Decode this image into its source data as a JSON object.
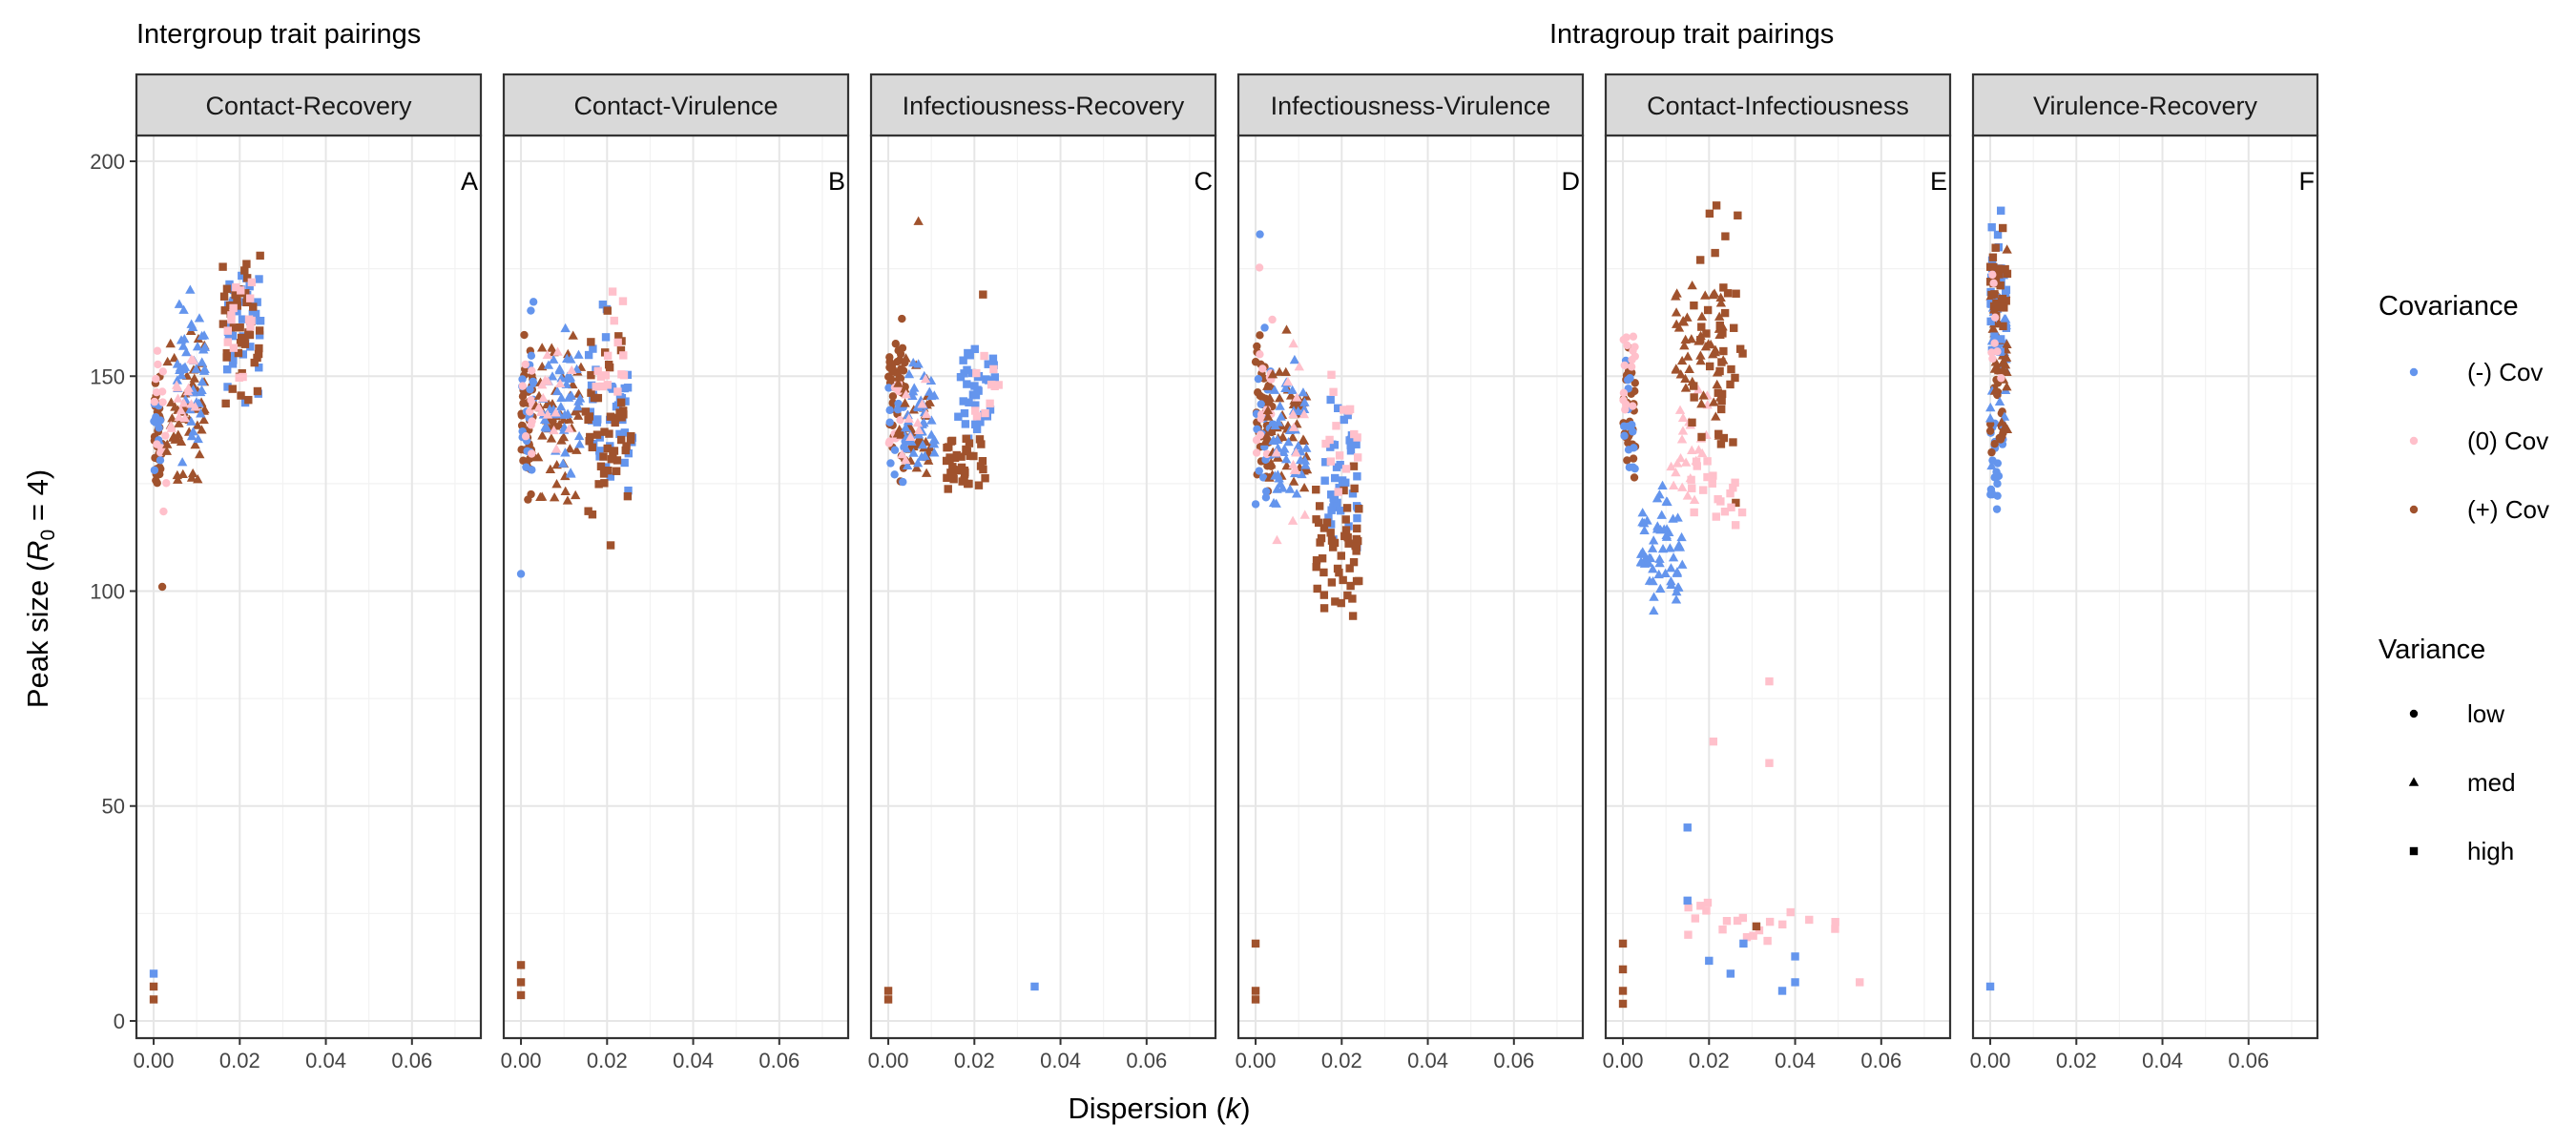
{
  "chart_data": {
    "type": "scatter",
    "group_titles": [
      "Intergroup trait pairings",
      "Intragroup trait pairings"
    ],
    "xlabel": "Dispersion (k)",
    "ylabel": "Peak size (R₀ = 4)",
    "xlim": [
      -0.004,
      0.076
    ],
    "ylim": [
      -4,
      206
    ],
    "x_ticks": [
      0.0,
      0.02,
      0.04,
      0.06
    ],
    "x_tick_labels": [
      "0.00",
      "0.02",
      "0.04",
      "0.06"
    ],
    "y_ticks": [
      0,
      50,
      100,
      150,
      200
    ],
    "y_tick_labels": [
      "0",
      "50",
      "100",
      "150",
      "200"
    ],
    "grid": true,
    "legend": {
      "placement": "right",
      "covariance": {
        "title": "Covariance",
        "items": [
          {
            "label": "(-) Cov",
            "color": "#6495ED"
          },
          {
            "label": "(0) Cov",
            "color": "#FFC0CB"
          },
          {
            "label": "(+) Cov",
            "color": "#A0522D"
          }
        ]
      },
      "variance": {
        "title": "Variance",
        "items": [
          {
            "label": "low",
            "shape": "circle"
          },
          {
            "label": "med",
            "shape": "triangle"
          },
          {
            "label": "high",
            "shape": "square"
          }
        ]
      }
    },
    "panels": [
      {
        "title": "Contact-Recovery",
        "tag": "A",
        "clusters": [
          {
            "cov": "(+) Cov",
            "var": "low",
            "x": [
              0.0,
              0.002
            ],
            "y": [
              115,
              155
            ],
            "n": 40
          },
          {
            "cov": "(-) Cov",
            "var": "low",
            "x": [
              0.0,
              0.002
            ],
            "y": [
              125,
              150
            ],
            "n": 14
          },
          {
            "cov": "(0) Cov",
            "var": "low",
            "x": [
              0.0,
              0.003
            ],
            "y": [
              110,
              165
            ],
            "n": 14
          },
          {
            "cov": "(+) Cov",
            "var": "med",
            "x": [
              0.003,
              0.012
            ],
            "y": [
              118,
              168
            ],
            "n": 55
          },
          {
            "cov": "(-) Cov",
            "var": "med",
            "x": [
              0.005,
              0.012
            ],
            "y": [
              125,
              175
            ],
            "n": 45
          },
          {
            "cov": "(0) Cov",
            "var": "med",
            "x": [
              0.004,
              0.01
            ],
            "y": [
              125,
              165
            ],
            "n": 15
          },
          {
            "cov": "(-) Cov",
            "var": "high",
            "x": [
              0.017,
              0.025
            ],
            "y": [
              140,
              188
            ],
            "n": 40
          },
          {
            "cov": "(+) Cov",
            "var": "high",
            "x": [
              0.016,
              0.025
            ],
            "y": [
              133,
              188
            ],
            "n": 45
          },
          {
            "cov": "(0) Cov",
            "var": "high",
            "x": [
              0.016,
              0.023
            ],
            "y": [
              140,
              182
            ],
            "n": 15
          }
        ],
        "points": [
          {
            "cov": "(+) Cov",
            "var": "low",
            "x": 0.002,
            "y": 101
          },
          {
            "cov": "(-) Cov",
            "var": "high",
            "x": 0.0,
            "y": 11
          },
          {
            "cov": "(+) Cov",
            "var": "high",
            "x": 0.0,
            "y": 8
          },
          {
            "cov": "(+) Cov",
            "var": "high",
            "x": 0.0,
            "y": 5
          }
        ]
      },
      {
        "title": "Contact-Virulence",
        "tag": "B",
        "clusters": [
          {
            "cov": "(+) Cov",
            "var": "low",
            "x": [
              0.0,
              0.003
            ],
            "y": [
              118,
              165
            ],
            "n": 40
          },
          {
            "cov": "(-) Cov",
            "var": "low",
            "x": [
              0.0,
              0.003
            ],
            "y": [
              110,
              180
            ],
            "n": 20
          },
          {
            "cov": "(0) Cov",
            "var": "low",
            "x": [
              0.0,
              0.003
            ],
            "y": [
              120,
              160
            ],
            "n": 10
          },
          {
            "cov": "(+) Cov",
            "var": "med",
            "x": [
              0.003,
              0.014
            ],
            "y": [
              115,
              165
            ],
            "n": 55
          },
          {
            "cov": "(-) Cov",
            "var": "med",
            "x": [
              0.005,
              0.014
            ],
            "y": [
              120,
              170
            ],
            "n": 45
          },
          {
            "cov": "(0) Cov",
            "var": "med",
            "x": [
              0.004,
              0.012
            ],
            "y": [
              120,
              160
            ],
            "n": 15
          },
          {
            "cov": "(-) Cov",
            "var": "high",
            "x": [
              0.015,
              0.026
            ],
            "y": [
              115,
              175
            ],
            "n": 40
          },
          {
            "cov": "(+) Cov",
            "var": "high",
            "x": [
              0.015,
              0.026
            ],
            "y": [
              101,
              170
            ],
            "n": 50
          },
          {
            "cov": "(0) Cov",
            "var": "high",
            "x": [
              0.017,
              0.024
            ],
            "y": [
              135,
              178
            ],
            "n": 15
          }
        ],
        "points": [
          {
            "cov": "(-) Cov",
            "var": "low",
            "x": 0.0,
            "y": 104
          },
          {
            "cov": "(+) Cov",
            "var": "high",
            "x": 0.0,
            "y": 13
          },
          {
            "cov": "(+) Cov",
            "var": "high",
            "x": 0.0,
            "y": 9
          },
          {
            "cov": "(+) Cov",
            "var": "high",
            "x": 0.0,
            "y": 6
          }
        ]
      },
      {
        "title": "Infectiousness-Recovery",
        "tag": "C",
        "clusters": [
          {
            "cov": "(+) Cov",
            "var": "low",
            "x": [
              0.0,
              0.004
            ],
            "y": [
              115,
              170
            ],
            "n": 40
          },
          {
            "cov": "(-) Cov",
            "var": "low",
            "x": [
              0.0,
              0.004
            ],
            "y": [
              115,
              160
            ],
            "n": 15
          },
          {
            "cov": "(0) Cov",
            "var": "low",
            "x": [
              0.0,
              0.003
            ],
            "y": [
              120,
              160
            ],
            "n": 10
          },
          {
            "cov": "(+) Cov",
            "var": "med",
            "x": [
              0.002,
              0.01
            ],
            "y": [
              115,
              160
            ],
            "n": 40
          },
          {
            "cov": "(-) Cov",
            "var": "med",
            "x": [
              0.004,
              0.011
            ],
            "y": [
              118,
              160
            ],
            "n": 40
          },
          {
            "cov": "(0) Cov",
            "var": "med",
            "x": [
              0.003,
              0.009
            ],
            "y": [
              120,
              155
            ],
            "n": 10
          },
          {
            "cov": "(-) Cov",
            "var": "high",
            "x": [
              0.016,
              0.025
            ],
            "y": [
              128,
              165
            ],
            "n": 35
          },
          {
            "cov": "(+) Cov",
            "var": "high",
            "x": [
              0.013,
              0.023
            ],
            "y": [
              120,
              140
            ],
            "n": 40
          },
          {
            "cov": "(0) Cov",
            "var": "high",
            "x": [
              0.02,
              0.026
            ],
            "y": [
              130,
              160
            ],
            "n": 10
          }
        ],
        "points": [
          {
            "cov": "(+) Cov",
            "var": "med",
            "x": 0.007,
            "y": 186
          },
          {
            "cov": "(+) Cov",
            "var": "high",
            "x": 0.022,
            "y": 169
          },
          {
            "cov": "(-) Cov",
            "var": "high",
            "x": 0.034,
            "y": 8
          },
          {
            "cov": "(+) Cov",
            "var": "high",
            "x": 0.0,
            "y": 7
          },
          {
            "cov": "(+) Cov",
            "var": "high",
            "x": 0.0,
            "y": 5
          }
        ]
      },
      {
        "title": "Infectiousness-Virulence",
        "tag": "D",
        "clusters": [
          {
            "cov": "(+) Cov",
            "var": "low",
            "x": [
              0.0,
              0.004
            ],
            "y": [
              115,
              167
            ],
            "n": 40
          },
          {
            "cov": "(-) Cov",
            "var": "low",
            "x": [
              0.0,
              0.004
            ],
            "y": [
              108,
              165
            ],
            "n": 20
          },
          {
            "cov": "(0) Cov",
            "var": "low",
            "x": [
              0.0,
              0.004
            ],
            "y": [
              110,
              185
            ],
            "n": 15
          },
          {
            "cov": "(+) Cov",
            "var": "med",
            "x": [
              0.002,
              0.012
            ],
            "y": [
              110,
              165
            ],
            "n": 50
          },
          {
            "cov": "(-) Cov",
            "var": "med",
            "x": [
              0.004,
              0.012
            ],
            "y": [
              112,
              160
            ],
            "n": 45
          },
          {
            "cov": "(0) Cov",
            "var": "med",
            "x": [
              0.004,
              0.012
            ],
            "y": [
              103,
              165
            ],
            "n": 15
          },
          {
            "cov": "(-) Cov",
            "var": "high",
            "x": [
              0.016,
              0.025
            ],
            "y": [
              100,
              152
            ],
            "n": 40
          },
          {
            "cov": "(+) Cov",
            "var": "high",
            "x": [
              0.014,
              0.024
            ],
            "y": [
              84,
              140
            ],
            "n": 50
          },
          {
            "cov": "(0) Cov",
            "var": "high",
            "x": [
              0.016,
              0.024
            ],
            "y": [
              110,
              166
            ],
            "n": 15
          }
        ],
        "points": [
          {
            "cov": "(-) Cov",
            "var": "low",
            "x": 0.001,
            "y": 183
          },
          {
            "cov": "(+) Cov",
            "var": "high",
            "x": 0.0,
            "y": 18
          },
          {
            "cov": "(+) Cov",
            "var": "high",
            "x": 0.0,
            "y": 7
          },
          {
            "cov": "(+) Cov",
            "var": "high",
            "x": 0.0,
            "y": 5
          }
        ]
      },
      {
        "title": "Contact-Infectiousness",
        "tag": "E",
        "clusters": [
          {
            "cov": "(+) Cov",
            "var": "low",
            "x": [
              0.0,
              0.003
            ],
            "y": [
              120,
              165
            ],
            "n": 30
          },
          {
            "cov": "(-) Cov",
            "var": "low",
            "x": [
              0.0,
              0.003
            ],
            "y": [
              115,
              160
            ],
            "n": 15
          },
          {
            "cov": "(0) Cov",
            "var": "low",
            "x": [
              0.0,
              0.003
            ],
            "y": [
              125,
              175
            ],
            "n": 15
          },
          {
            "cov": "(-) Cov",
            "var": "med",
            "x": [
              0.004,
              0.014
            ],
            "y": [
              88,
              130
            ],
            "n": 60
          },
          {
            "cov": "(0) Cov",
            "var": "med",
            "x": [
              0.01,
              0.02
            ],
            "y": [
              110,
              160
            ],
            "n": 25
          },
          {
            "cov": "(+) Cov",
            "var": "med",
            "x": [
              0.012,
              0.024
            ],
            "y": [
              130,
              185
            ],
            "n": 50
          },
          {
            "cov": "(+) Cov",
            "var": "high",
            "x": [
              0.016,
              0.028
            ],
            "y": [
              115,
              198
            ],
            "n": 40
          },
          {
            "cov": "(0) Cov",
            "var": "high",
            "x": [
              0.015,
              0.028
            ],
            "y": [
              100,
              145
            ],
            "n": 20
          },
          {
            "cov": "(0) Cov",
            "var": "high",
            "x": [
              0.015,
              0.05
            ],
            "y": [
              14,
              32
            ],
            "n": 20
          }
        ],
        "points": [
          {
            "cov": "(-) Cov",
            "var": "high",
            "x": 0.015,
            "y": 45
          },
          {
            "cov": "(-) Cov",
            "var": "high",
            "x": 0.015,
            "y": 28
          },
          {
            "cov": "(-) Cov",
            "var": "high",
            "x": 0.02,
            "y": 14
          },
          {
            "cov": "(-) Cov",
            "var": "high",
            "x": 0.025,
            "y": 11
          },
          {
            "cov": "(-) Cov",
            "var": "high",
            "x": 0.028,
            "y": 18
          },
          {
            "cov": "(-) Cov",
            "var": "high",
            "x": 0.037,
            "y": 7
          },
          {
            "cov": "(-) Cov",
            "var": "high",
            "x": 0.04,
            "y": 15
          },
          {
            "cov": "(-) Cov",
            "var": "high",
            "x": 0.04,
            "y": 9
          },
          {
            "cov": "(0) Cov",
            "var": "high",
            "x": 0.021,
            "y": 65
          },
          {
            "cov": "(0) Cov",
            "var": "high",
            "x": 0.034,
            "y": 79
          },
          {
            "cov": "(0) Cov",
            "var": "high",
            "x": 0.034,
            "y": 60
          },
          {
            "cov": "(0) Cov",
            "var": "high",
            "x": 0.055,
            "y": 9
          },
          {
            "cov": "(+) Cov",
            "var": "high",
            "x": 0.031,
            "y": 22
          },
          {
            "cov": "(+) Cov",
            "var": "high",
            "x": 0.0,
            "y": 18
          },
          {
            "cov": "(+) Cov",
            "var": "high",
            "x": 0.0,
            "y": 12
          },
          {
            "cov": "(+) Cov",
            "var": "high",
            "x": 0.0,
            "y": 7
          },
          {
            "cov": "(+) Cov",
            "var": "high",
            "x": 0.0,
            "y": 4
          }
        ]
      },
      {
        "title": "Virulence-Recovery",
        "tag": "F",
        "clusters": [
          {
            "cov": "(-) Cov",
            "var": "low",
            "x": [
              0.0,
              0.003
            ],
            "y": [
              112,
              150
            ],
            "n": 20
          },
          {
            "cov": "(+) Cov",
            "var": "low",
            "x": [
              0.0,
              0.003
            ],
            "y": [
              125,
              160
            ],
            "n": 20
          },
          {
            "cov": "(-) Cov",
            "var": "med",
            "x": [
              0.0,
              0.004
            ],
            "y": [
              120,
              190
            ],
            "n": 30
          },
          {
            "cov": "(+) Cov",
            "var": "med",
            "x": [
              0.0,
              0.004
            ],
            "y": [
              125,
              185
            ],
            "n": 30
          },
          {
            "cov": "(-) Cov",
            "var": "high",
            "x": [
              0.0,
              0.004
            ],
            "y": [
              150,
              193
            ],
            "n": 25
          },
          {
            "cov": "(+) Cov",
            "var": "high",
            "x": [
              0.0,
              0.004
            ],
            "y": [
              155,
              188
            ],
            "n": 25
          },
          {
            "cov": "(0) Cov",
            "var": "low",
            "x": [
              0.0,
              0.003
            ],
            "y": [
              130,
              180
            ],
            "n": 8
          }
        ],
        "points": [
          {
            "cov": "(-) Cov",
            "var": "high",
            "x": 0.0,
            "y": 8
          }
        ]
      }
    ]
  }
}
